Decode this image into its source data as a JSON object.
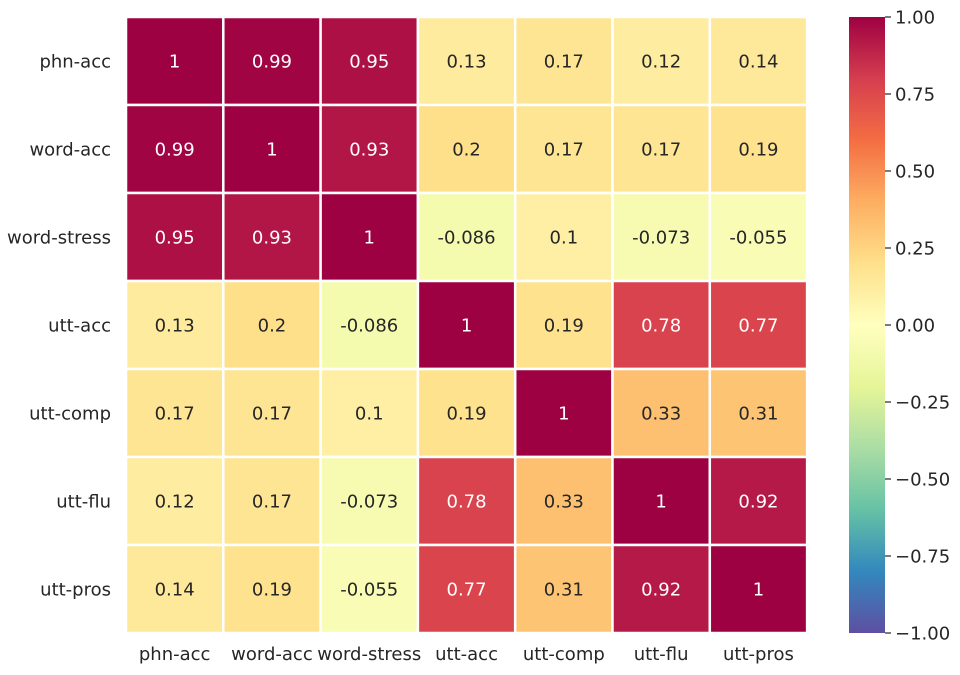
{
  "chart_data": {
    "type": "heatmap",
    "title": "",
    "row_labels": [
      "phn-acc",
      "word-acc",
      "word-stress",
      "utt-acc",
      "utt-comp",
      "utt-flu",
      "utt-pros"
    ],
    "col_labels": [
      "phn-acc",
      "word-acc",
      "word-stress",
      "utt-acc",
      "utt-comp",
      "utt-flu",
      "utt-pros"
    ],
    "values": [
      [
        1,
        0.99,
        0.95,
        0.13,
        0.17,
        0.12,
        0.14
      ],
      [
        0.99,
        1,
        0.93,
        0.2,
        0.17,
        0.17,
        0.19
      ],
      [
        0.95,
        0.93,
        1,
        -0.086,
        0.1,
        -0.073,
        -0.055
      ],
      [
        0.13,
        0.2,
        -0.086,
        1,
        0.19,
        0.78,
        0.77
      ],
      [
        0.17,
        0.17,
        0.1,
        0.19,
        1,
        0.33,
        0.31
      ],
      [
        0.12,
        0.17,
        -0.073,
        0.78,
        0.33,
        1,
        0.92
      ],
      [
        0.14,
        0.19,
        -0.055,
        0.77,
        0.31,
        0.92,
        1
      ]
    ],
    "cell_labels": [
      [
        "1",
        "0.99",
        "0.95",
        "0.13",
        "0.17",
        "0.12",
        "0.14"
      ],
      [
        "0.99",
        "1",
        "0.93",
        "0.2",
        "0.17",
        "0.17",
        "0.19"
      ],
      [
        "0.95",
        "0.93",
        "1",
        "-0.086",
        "0.1",
        "-0.073",
        "-0.055"
      ],
      [
        "0.13",
        "0.2",
        "-0.086",
        "1",
        "0.19",
        "0.78",
        "0.77"
      ],
      [
        "0.17",
        "0.17",
        "0.1",
        "0.19",
        "1",
        "0.33",
        "0.31"
      ],
      [
        "0.12",
        "0.17",
        "-0.073",
        "0.78",
        "0.33",
        "1",
        "0.92"
      ],
      [
        "0.14",
        "0.19",
        "-0.055",
        "0.77",
        "0.31",
        "0.92",
        "1"
      ]
    ],
    "colormap": "Spectral_r",
    "vmin": -1.0,
    "vmax": 1.0,
    "colorbar_ticks": [
      1.0,
      0.75,
      0.5,
      0.25,
      0.0,
      -0.25,
      -0.5,
      -0.75,
      -1.0
    ],
    "colorbar_tick_labels": [
      "1.00",
      "0.75",
      "0.50",
      "0.25",
      "0.00",
      "−0.25",
      "−0.50",
      "−0.75",
      "−1.00"
    ],
    "colormap_stops": [
      {
        "v": 0.0,
        "color": "#5e4fa2"
      },
      {
        "v": 0.1,
        "color": "#3288bd"
      },
      {
        "v": 0.2,
        "color": "#66c2a5"
      },
      {
        "v": 0.3,
        "color": "#abdda4"
      },
      {
        "v": 0.4,
        "color": "#e6f598"
      },
      {
        "v": 0.5,
        "color": "#ffffbf"
      },
      {
        "v": 0.6,
        "color": "#fee08b"
      },
      {
        "v": 0.7,
        "color": "#fdae61"
      },
      {
        "v": 0.8,
        "color": "#f46d43"
      },
      {
        "v": 0.9,
        "color": "#d53e4f"
      },
      {
        "v": 1.0,
        "color": "#9e0142"
      }
    ],
    "text_dark_color": "#262626",
    "text_light_color": "#ffffff",
    "grid_line_color": "#ffffff",
    "legend": "colorbar-right"
  }
}
